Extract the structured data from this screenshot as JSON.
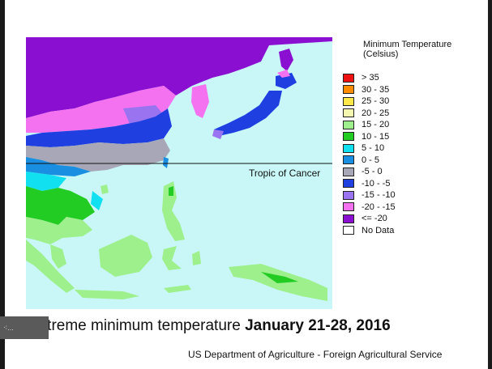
{
  "legend": {
    "title_line1": "Minimum Temperature",
    "title_line2": "(Celsius)",
    "items": [
      {
        "label": "> 35",
        "color": "#ee1111"
      },
      {
        "label": "30 - 35",
        "color": "#ff8c00"
      },
      {
        "label": "25 - 30",
        "color": "#ffe84a"
      },
      {
        "label": "20 - 25",
        "color": "#f4f7b0"
      },
      {
        "label": "15 - 20",
        "color": "#9df08b"
      },
      {
        "label": "10 - 15",
        "color": "#22cc22"
      },
      {
        "label": "5 - 10",
        "color": "#11e0f0"
      },
      {
        "label": "0 - 5",
        "color": "#1a8ee0"
      },
      {
        "label": "-5 - 0",
        "color": "#a7a7b7"
      },
      {
        "label": "-10 - -5",
        "color": "#1f3fe0"
      },
      {
        "label": "-15 - -10",
        "color": "#9a74f0"
      },
      {
        "label": "-20 - -15",
        "color": "#f472f0"
      },
      {
        "label": "<= -20",
        "color": "#8b0fd0"
      },
      {
        "label": "No Data",
        "color": "#ffffff"
      }
    ]
  },
  "map": {
    "tropic_label": "Tropic of Cancer",
    "ocean_color": "#c9f7f8"
  },
  "caption": {
    "prefix": "Extreme minimum temperature ",
    "dates": "January 21-28, 2016"
  },
  "credit": "US Department of Agriculture - Foreign Agricultural Service",
  "thumbnail_label": "⁖..."
}
